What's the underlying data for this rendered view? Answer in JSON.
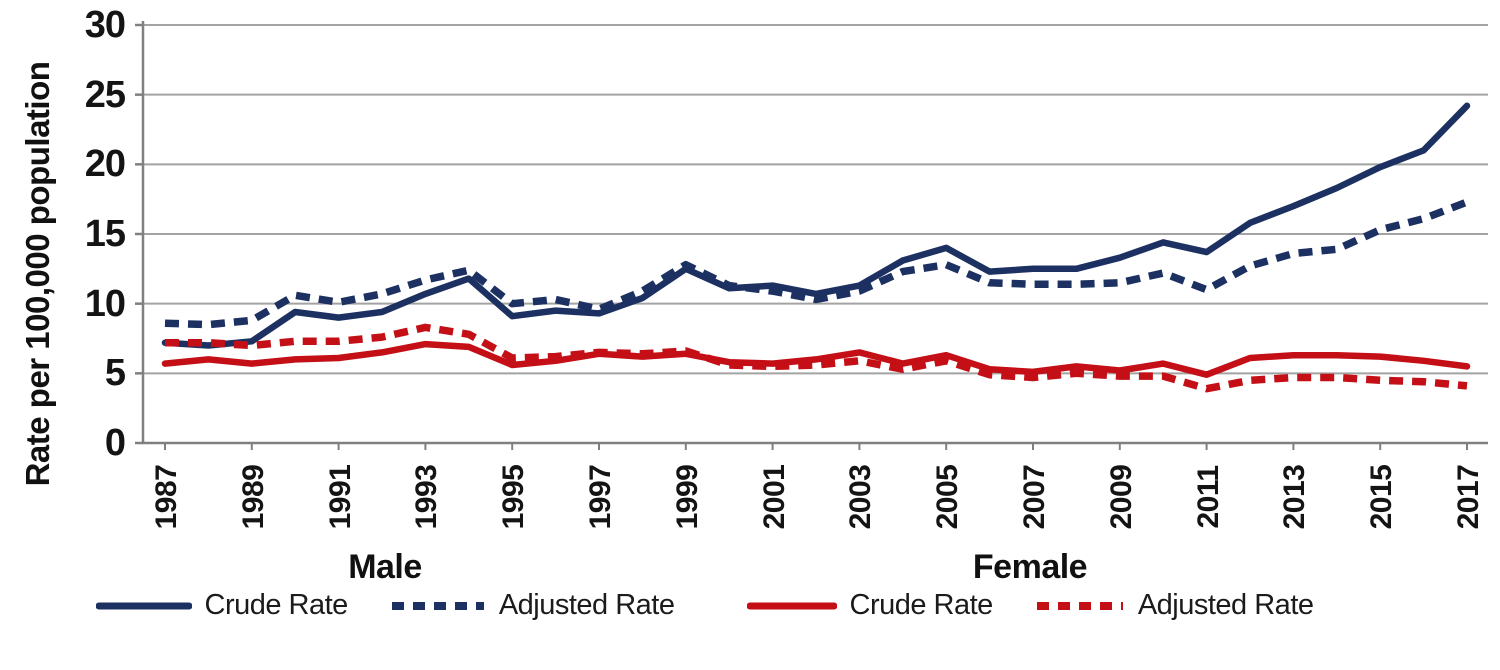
{
  "chart_data": {
    "type": "line",
    "title": "",
    "xlabel": "",
    "ylabel": "Rate per 100,000 population",
    "ylim": [
      0,
      30
    ],
    "yticks": [
      0,
      5,
      10,
      15,
      20,
      25,
      30
    ],
    "grid": "horizontal",
    "legend_position": "bottom",
    "x": [
      1987,
      1988,
      1989,
      1990,
      1991,
      1992,
      1993,
      1994,
      1995,
      1996,
      1997,
      1998,
      1999,
      2000,
      2001,
      2002,
      2003,
      2004,
      2005,
      2006,
      2007,
      2008,
      2009,
      2010,
      2011,
      2012,
      2013,
      2014,
      2015,
      2016,
      2017
    ],
    "xtick_labels": [
      "1987",
      "1989",
      "1991",
      "1993",
      "1995",
      "1997",
      "1999",
      "2001",
      "2003",
      "2005",
      "2007",
      "2009",
      "2011",
      "2013",
      "2015",
      "2017"
    ],
    "series": [
      {
        "name": "Male Crude Rate",
        "group": "Male",
        "label": "Crude Rate",
        "style": "solid",
        "color": "#1c3161",
        "values": [
          7.2,
          7.0,
          7.3,
          9.4,
          9.0,
          9.4,
          10.7,
          11.8,
          9.1,
          9.5,
          9.3,
          10.4,
          12.5,
          11.1,
          11.3,
          10.7,
          11.3,
          13.1,
          14.0,
          12.3,
          12.5,
          12.5,
          13.3,
          14.4,
          13.7,
          15.8,
          17.0,
          18.3,
          19.8,
          21.0,
          24.2
        ]
      },
      {
        "name": "Male Adjusted Rate",
        "group": "Male",
        "label": "Adjusted Rate",
        "style": "dashed",
        "color": "#1c3161",
        "values": [
          8.6,
          8.5,
          8.8,
          10.6,
          10.1,
          10.7,
          11.7,
          12.4,
          10.0,
          10.3,
          9.6,
          10.9,
          12.8,
          11.3,
          10.9,
          10.3,
          10.9,
          12.3,
          12.8,
          11.5,
          11.4,
          11.4,
          11.5,
          12.2,
          11.0,
          12.7,
          13.6,
          13.9,
          15.3,
          16.1,
          17.3
        ]
      },
      {
        "name": "Female Crude Rate",
        "group": "Female",
        "label": "Crude Rate",
        "style": "solid",
        "color": "#c40f16",
        "values": [
          5.7,
          6.0,
          5.7,
          6.0,
          6.1,
          6.5,
          7.1,
          6.9,
          5.6,
          5.9,
          6.4,
          6.2,
          6.4,
          5.8,
          5.7,
          6.0,
          6.5,
          5.7,
          6.3,
          5.3,
          5.1,
          5.5,
          5.2,
          5.7,
          4.9,
          6.1,
          6.3,
          6.3,
          6.2,
          5.9,
          5.5
        ]
      },
      {
        "name": "Female Adjusted Rate",
        "group": "Female",
        "label": "Adjusted Rate",
        "style": "dashed",
        "color": "#c40f16",
        "values": [
          7.2,
          7.2,
          7.0,
          7.3,
          7.3,
          7.6,
          8.3,
          7.8,
          6.1,
          6.2,
          6.5,
          6.4,
          6.6,
          5.6,
          5.5,
          5.6,
          5.9,
          5.3,
          5.9,
          4.9,
          4.7,
          5.0,
          4.8,
          4.8,
          3.9,
          4.5,
          4.7,
          4.7,
          4.5,
          4.4,
          4.1
        ]
      }
    ],
    "legend_groups": [
      {
        "header": "Male",
        "items": [
          {
            "label": "Crude Rate",
            "style": "solid",
            "color": "#1c3161"
          },
          {
            "label": "Adjusted Rate",
            "style": "dashed",
            "color": "#1c3161"
          }
        ]
      },
      {
        "header": "Female",
        "items": [
          {
            "label": "Crude Rate",
            "style": "solid",
            "color": "#c40f16"
          },
          {
            "label": "Adjusted Rate",
            "style": "dashed",
            "color": "#c40f16"
          }
        ]
      }
    ],
    "colors": {
      "grid": "#a3a3a3",
      "axis": "#808080",
      "text": "#141414"
    }
  }
}
